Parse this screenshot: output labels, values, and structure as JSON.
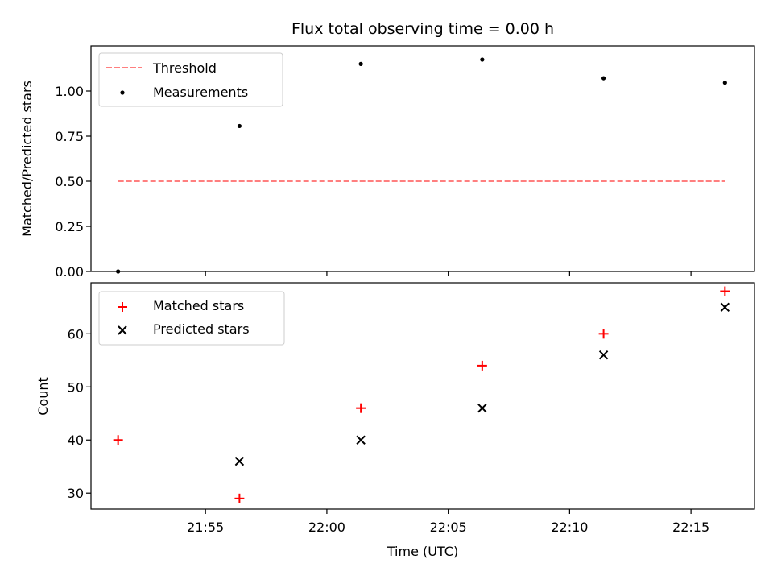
{
  "chart_data": [
    {
      "type": "scatter",
      "title": "Flux total observing time = 0.00 h",
      "xlabel": "",
      "ylabel": "Matched/Predicted stars",
      "xlim": [
        "21:50:17",
        "22:17:37"
      ],
      "ylim": [
        0,
        1.25
      ],
      "y_ticks": [
        "0.00",
        "0.25",
        "0.50",
        "0.75",
        "1.00"
      ],
      "x_ticks_labeled": false,
      "grid": false,
      "legend": "top-left",
      "series": [
        {
          "name": "Threshold",
          "kind": "dashed-line",
          "color": "#ff7f7f",
          "x": [
            "21:51:24",
            "22:16:24"
          ],
          "y": [
            0.5,
            0.5
          ]
        },
        {
          "name": "Measurements",
          "kind": "dot",
          "color": "#000000",
          "x": [
            "21:51:24",
            "21:56:24",
            "22:01:24",
            "22:06:24",
            "22:11:24",
            "22:16:24"
          ],
          "y": [
            0.0,
            0.806,
            1.15,
            1.174,
            1.071,
            1.046
          ]
        }
      ]
    },
    {
      "type": "scatter",
      "title": "",
      "xlabel": "Time (UTC)",
      "ylabel": "Count",
      "xlim": [
        "21:50:17",
        "22:17:37"
      ],
      "ylim": [
        27.0,
        69.6
      ],
      "x_ticks": [
        "21:55",
        "22:00",
        "22:05",
        "22:10",
        "22:15"
      ],
      "y_ticks": [
        "30",
        "40",
        "50",
        "60"
      ],
      "grid": false,
      "legend": "top-left",
      "series": [
        {
          "name": "Matched stars",
          "kind": "plus",
          "color": "#ff0000",
          "x": [
            "21:51:24",
            "21:56:24",
            "22:01:24",
            "22:06:24",
            "22:11:24",
            "22:16:24"
          ],
          "y": [
            40,
            29,
            46,
            54,
            60,
            68
          ]
        },
        {
          "name": "Predicted stars",
          "kind": "x",
          "color": "#000000",
          "x": [
            "21:56:24",
            "22:01:24",
            "22:06:24",
            "22:11:24",
            "22:16:24"
          ],
          "y": [
            36,
            40,
            46,
            56,
            65
          ]
        }
      ]
    }
  ]
}
